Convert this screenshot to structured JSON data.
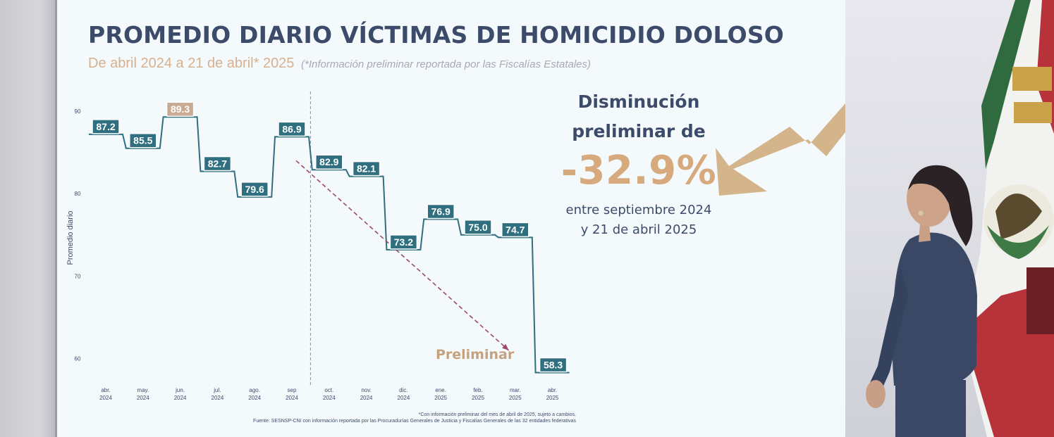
{
  "slide": {
    "title": "PROMEDIO DIARIO VÍCTIMAS DE HOMICIDIO DOLOSO",
    "subtitle": "De abril 2024 a 21 de abril* 2025",
    "subtitle_note": "(*Información preliminar reportada por las Fiscalías Estatales)",
    "callout_line1": "Disminución",
    "callout_line2": "preliminar de",
    "callout_pct": "-32.9%",
    "callout_sub1": "entre septiembre 2024",
    "callout_sub2": "y 21 de abril 2025",
    "footnote1": "*Con información preliminar del mes de abril de 2025, sujeto a cambios.",
    "footnote2": "Fuente: SESNSP-CNI con información reportada por las Procuradurías Generales de Justicia y Fiscalías Generales de las 32 entidades federativas",
    "colors": {
      "title": "#3d4b6a",
      "accent": "#d6aa7c",
      "series": "#2f6f80",
      "highlight_label": "#c9ab93",
      "trend_arrow": "#9b4a66"
    }
  },
  "chart_data": {
    "type": "line",
    "step": true,
    "title": "PROMEDIO DIARIO VÍCTIMAS DE HOMICIDIO DOLOSO",
    "ylabel": "Promedio diario",
    "xlabel": "",
    "ylim": [
      58,
      92
    ],
    "yticks": [
      60,
      70,
      80,
      90
    ],
    "grid": false,
    "categories": [
      {
        "month": "abr.",
        "year": "2024"
      },
      {
        "month": "may.",
        "year": "2024"
      },
      {
        "month": "jun.",
        "year": "2024"
      },
      {
        "month": "jul.",
        "year": "2024"
      },
      {
        "month": "ago.",
        "year": "2024"
      },
      {
        "month": "sep",
        "year": "2024"
      },
      {
        "month": "oct.",
        "year": "2024"
      },
      {
        "month": "nov.",
        "year": "2024"
      },
      {
        "month": "dic.",
        "year": "2024"
      },
      {
        "month": "ene.",
        "year": "2025"
      },
      {
        "month": "feb.",
        "year": "2025"
      },
      {
        "month": "mar.",
        "year": "2025"
      },
      {
        "month": "abr.",
        "year": "2025"
      }
    ],
    "values": [
      87.2,
      85.5,
      89.3,
      82.7,
      79.6,
      86.9,
      82.9,
      82.1,
      73.2,
      76.9,
      75.0,
      74.7,
      58.3
    ],
    "value_labels": [
      "87.2",
      "85.5",
      "89.3",
      "82.7",
      "79.6",
      "86.9",
      "82.9",
      "82.1",
      "73.2",
      "76.9",
      "75.0",
      "74.7",
      "58.3"
    ],
    "highlight_index": 2,
    "divider_after": "sep",
    "annotation": "Preliminar",
    "trend_arrow": {
      "from": [
        "sep",
        84
      ],
      "to": [
        "abr.",
        61
      ]
    }
  }
}
